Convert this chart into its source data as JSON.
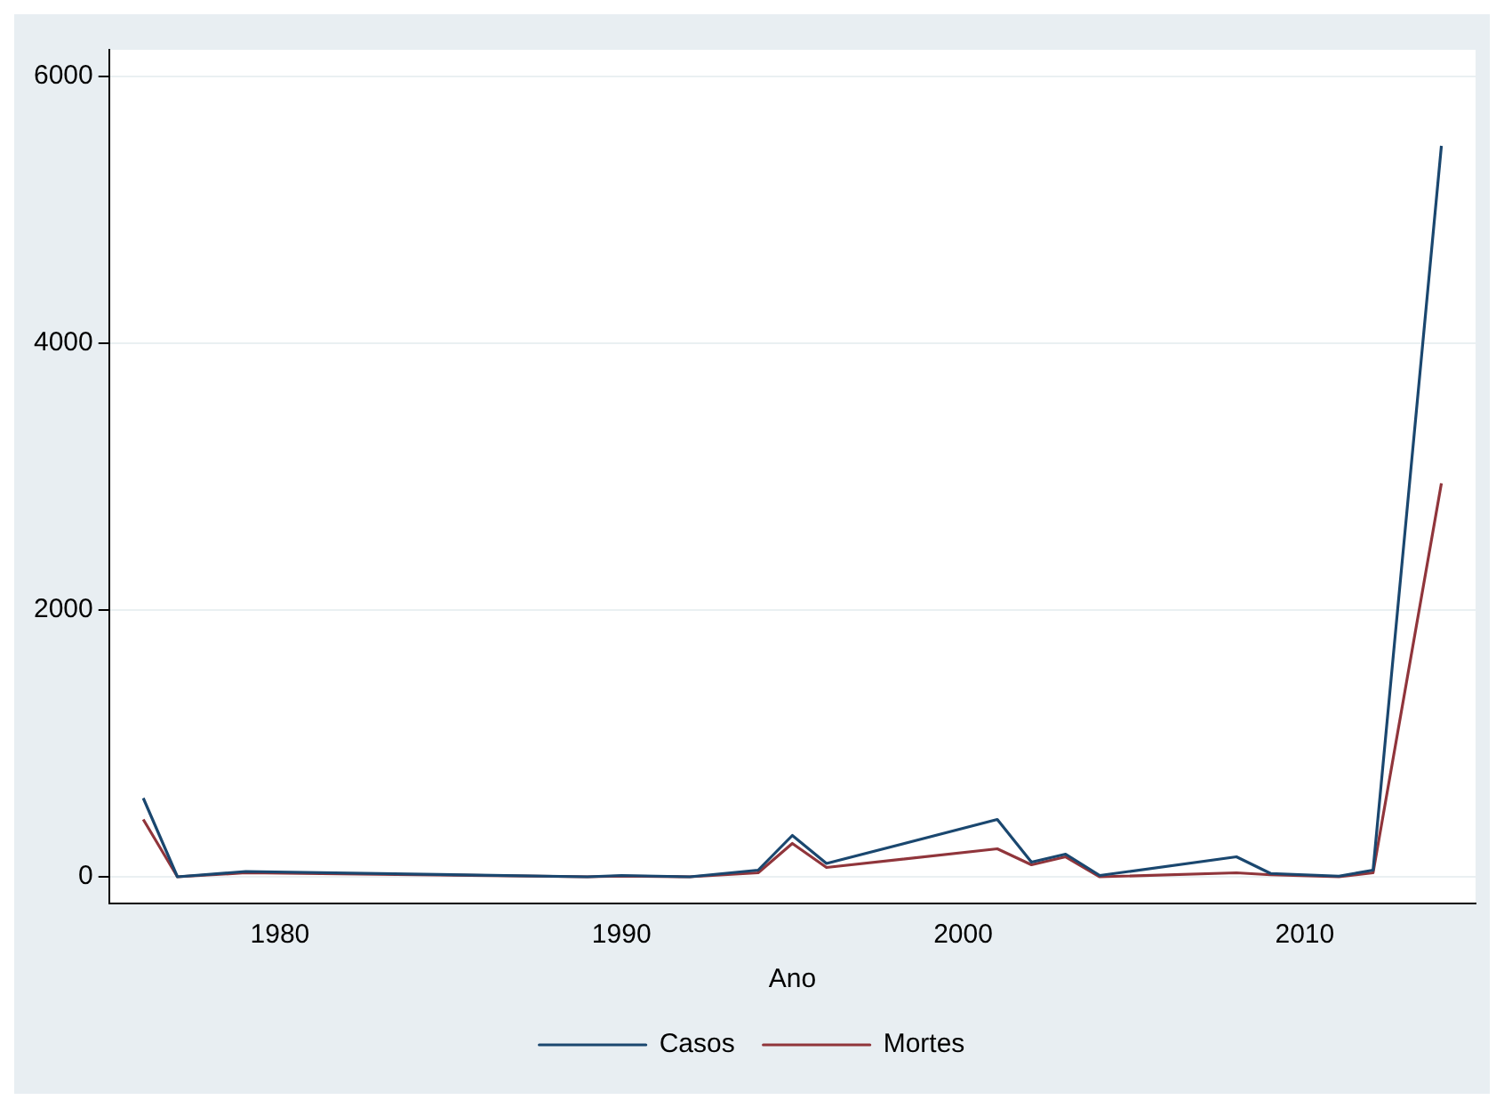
{
  "chart_data": {
    "type": "line",
    "xlabel": "Ano",
    "x": [
      1976,
      1977,
      1979,
      1989,
      1990,
      1992,
      1994,
      1995,
      1996,
      2001,
      2002,
      2003,
      2004,
      2008,
      2009,
      2011,
      2012,
      2014
    ],
    "series": [
      {
        "name": "Casos",
        "color": "#1a476f",
        "values": [
          590,
          0,
          40,
          0,
          10,
          0,
          50,
          310,
          100,
          430,
          110,
          170,
          10,
          150,
          25,
          5,
          50,
          5480
        ]
      },
      {
        "name": "Mortes",
        "color": "#90353b",
        "values": [
          430,
          0,
          30,
          0,
          5,
          0,
          30,
          250,
          70,
          210,
          90,
          150,
          0,
          30,
          15,
          0,
          30,
          2950
        ]
      }
    ],
    "xlim": [
      1975,
      2015
    ],
    "xticks": [
      1980,
      1990,
      2000,
      2010
    ],
    "ylim": [
      -200,
      6200
    ],
    "yticks": [
      0,
      2000,
      4000,
      6000
    ],
    "grid": "y",
    "legend": "bottom",
    "marker": "none",
    "line_style": "solid"
  }
}
